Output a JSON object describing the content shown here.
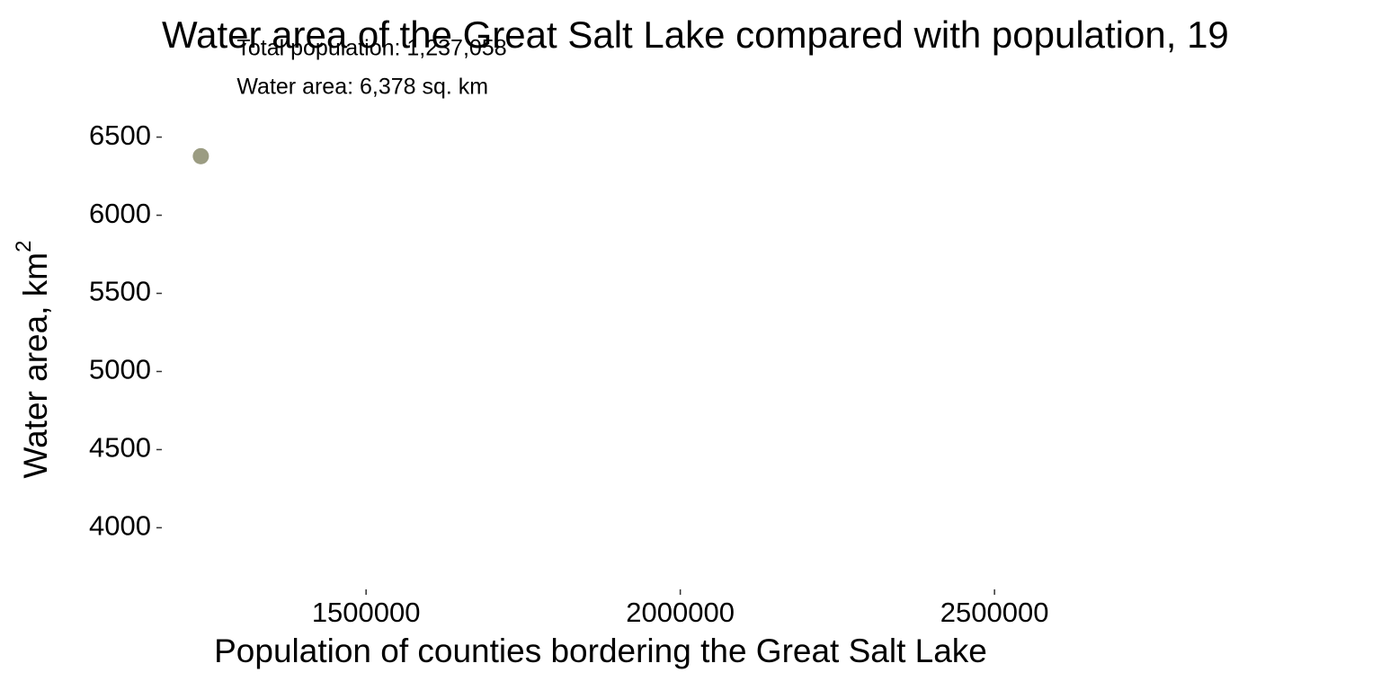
{
  "chart_data": {
    "type": "scatter",
    "title": "Water area of the Great Salt Lake compared with population, 19",
    "x_label": "Population of counties bordering the Great Salt Lake",
    "y_label": "Water area, km",
    "y_label_superscript": "2",
    "x": [
      1237058
    ],
    "values": [
      6378
    ],
    "color": "#9b9c82",
    "annotations": [
      "Total population: 1,237,058",
      "Water area: 6,378 sq. km"
    ],
    "xlim": [
      1175000,
      3115000
    ],
    "xticks": [
      1500000,
      2000000,
      2500000
    ],
    "ylim": [
      3640,
      6630
    ],
    "yticks": [
      4000,
      4500,
      5000,
      5500,
      6000,
      6500
    ],
    "grid": false
  }
}
